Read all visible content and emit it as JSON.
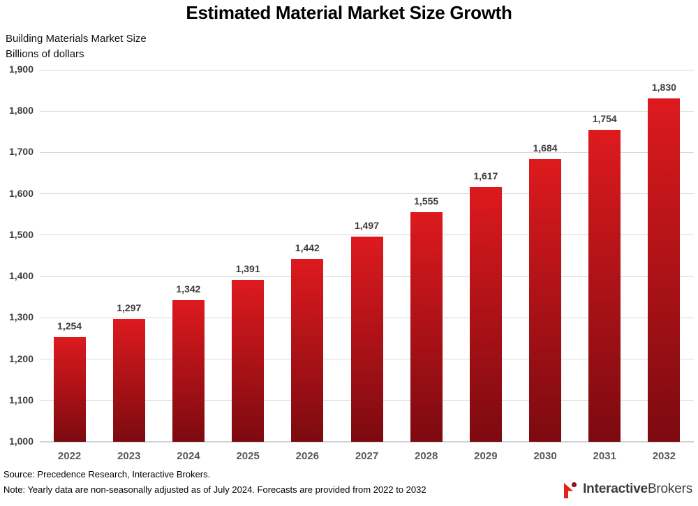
{
  "title": "Estimated Material Market Size Growth",
  "subtitle_line1": "Building Materials Market Size",
  "subtitle_line2": "Billions of dollars",
  "footer": {
    "source": "Source: Precedence Research, Interactive Brokers.",
    "note": "Note: Yearly data are non-seasonally adjusted as of July 2024. Forecasts are provided from 2022 to 2032"
  },
  "logo": {
    "icon": "interactive-brokers-spike-icon",
    "text_bold": "Interactive",
    "text_regular": "Brokers",
    "icon_red": "#e2231a",
    "icon_dot": "#8e1418"
  },
  "colors": {
    "bar_top": "#dd1a1e",
    "bar_bottom": "#7c0a10",
    "gridline": "#d9d9d9",
    "axis_baseline": "#d2d2d2",
    "value_label": "#3d3d3d",
    "year_label": "#595959",
    "ytick_label": "#3d3d3d"
  },
  "chart_data": {
    "type": "bar",
    "title": "Estimated Material Market Size Growth",
    "xlabel": "",
    "ylabel": "Billions of dollars",
    "categories": [
      "2022",
      "2023",
      "2024",
      "2025",
      "2026",
      "2027",
      "2028",
      "2029",
      "2030",
      "2031",
      "2032"
    ],
    "values": [
      1254,
      1297,
      1342,
      1391,
      1442,
      1497,
      1555,
      1617,
      1684,
      1754,
      1830
    ],
    "value_labels": [
      "1,254",
      "1,297",
      "1,342",
      "1,391",
      "1,442",
      "1,497",
      "1,555",
      "1,617",
      "1,684",
      "1,754",
      "1,830"
    ],
    "ylim": [
      1000,
      1900
    ],
    "yticks": [
      1000,
      1100,
      1200,
      1300,
      1400,
      1500,
      1600,
      1700,
      1800,
      1900
    ],
    "ytick_labels": [
      "1,000",
      "1,100",
      "1,200",
      "1,300",
      "1,400",
      "1,500",
      "1,600",
      "1,700",
      "1,800",
      "1,900"
    ],
    "grid": true,
    "legend": false,
    "bar_gradient": [
      "#dd1a1e",
      "#7c0a10"
    ]
  }
}
